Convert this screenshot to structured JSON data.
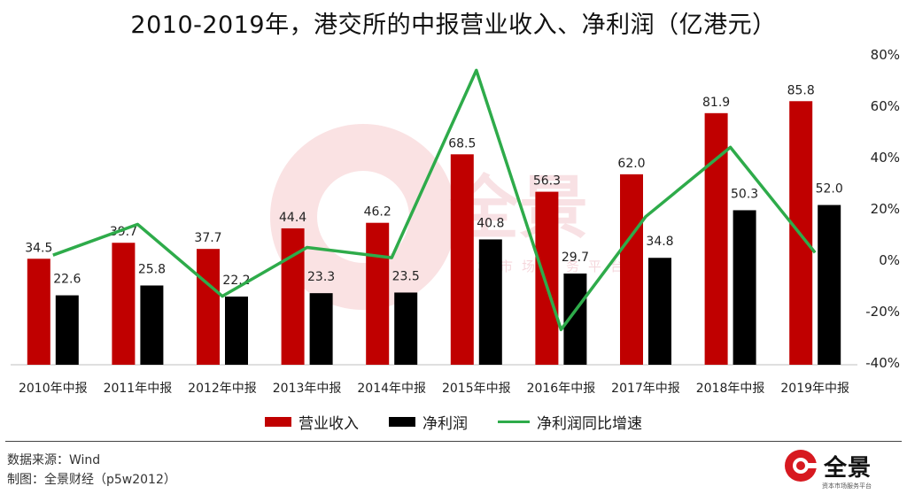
{
  "title": "2010-2019年，港交所的中报营业收入、净利润（亿港元）",
  "legend": {
    "revenue": "营业收入",
    "profit": "净利润",
    "growth": "净利润同比增速"
  },
  "footer": {
    "source": "数据来源：Wind",
    "author": "制图：全景财经（p5w2012）"
  },
  "brand": {
    "name": "全景",
    "sub": "资本市场服务平台"
  },
  "watermark": {
    "text": "全景",
    "sub": "资本市场服务平台"
  },
  "colors": {
    "revenue": "#c00000",
    "profit": "#000000",
    "growth": "#2eab4a"
  },
  "chart_data": {
    "type": "bar",
    "categories": [
      "2010年中报",
      "2011年中报",
      "2012年中报",
      "2013年中报",
      "2014年中报",
      "2015年中报",
      "2016年中报",
      "2017年中报",
      "2018年中报",
      "2019年中报"
    ],
    "series": [
      {
        "name": "营业收入",
        "type": "bar",
        "axis": "left",
        "values": [
          34.5,
          39.7,
          37.7,
          44.4,
          46.2,
          68.5,
          56.3,
          62.0,
          81.9,
          85.8
        ],
        "labels": [
          "34.5",
          "39.7",
          "37.7",
          "44.4",
          "46.2",
          "68.5",
          "56.3",
          "62.0",
          "81.9",
          "85.8"
        ]
      },
      {
        "name": "净利润",
        "type": "bar",
        "axis": "left",
        "values": [
          22.6,
          25.8,
          22.2,
          23.3,
          23.5,
          40.8,
          29.7,
          34.8,
          50.3,
          52.0
        ],
        "labels": [
          "22.6",
          "25.8",
          "22.2",
          "23.3",
          "23.5",
          "40.8",
          "29.7",
          "34.8",
          "50.3",
          "52.0"
        ]
      },
      {
        "name": "净利润同比增速",
        "type": "line",
        "axis": "right",
        "values": [
          2,
          14,
          -14,
          5,
          1,
          74,
          -27,
          17,
          44,
          3
        ]
      }
    ],
    "ylim_left": [
      0,
      100
    ],
    "ylim_right": [
      -40,
      80
    ],
    "right_ticks": [
      "80%",
      "60%",
      "40%",
      "20%",
      "0%",
      "-20%",
      "-40%"
    ],
    "grid": false,
    "legend_position": "bottom"
  }
}
